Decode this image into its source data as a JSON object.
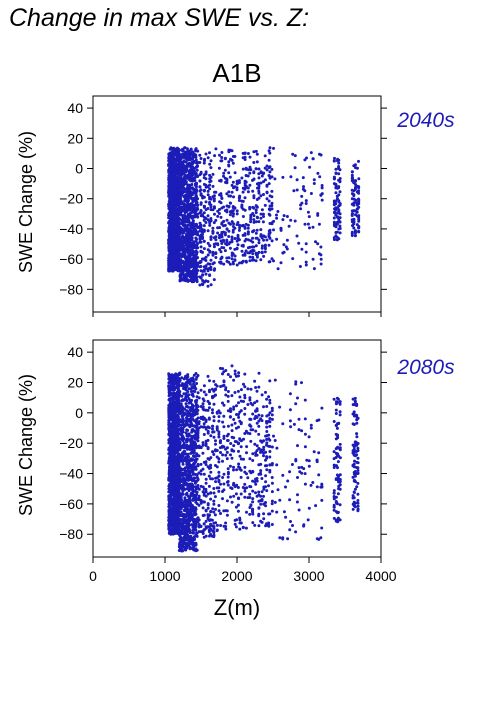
{
  "figure_title": "Change in max SWE vs. Z:",
  "colors": {
    "points": "#1c1cb8",
    "axis": "#000000",
    "panel_label": "#1c1cb8"
  },
  "chart_data": [
    {
      "type": "scatter",
      "title": "A1B",
      "panel_label": "2040s",
      "xlabel": "",
      "ylabel": "SWE Change (%)",
      "xlim": [
        0,
        4000
      ],
      "ylim": [
        -95,
        48
      ],
      "yticks": [
        40,
        20,
        0,
        -20,
        -40,
        -60,
        -80
      ],
      "ytick_labels": [
        "40",
        "20",
        "0",
        "−20",
        "−40",
        "−60",
        "−80"
      ],
      "grid": false,
      "clusters": [
        {
          "x": [
            1050,
            1200
          ],
          "range": [
            -68,
            14
          ],
          "density": "very-high"
        },
        {
          "x": [
            1200,
            1450
          ],
          "range": [
            -75,
            14
          ],
          "density": "high"
        },
        {
          "x": [
            1450,
            1700
          ],
          "range": [
            -78,
            14
          ],
          "density": "medium"
        },
        {
          "x": [
            1700,
            2100
          ],
          "range": [
            -64,
            14
          ],
          "density": "medium"
        },
        {
          "x": [
            2100,
            2500
          ],
          "range": [
            -62,
            14
          ],
          "density": "medium"
        },
        {
          "x": [
            2500,
            3200
          ],
          "range": [
            -67,
            16
          ],
          "density": "low"
        },
        {
          "x": [
            3350,
            3450
          ],
          "range": [
            -48,
            8
          ],
          "density": "low"
        },
        {
          "x": [
            3600,
            3700
          ],
          "range": [
            -45,
            7
          ],
          "density": "low"
        }
      ]
    },
    {
      "type": "scatter",
      "title": "",
      "panel_label": "2080s",
      "xlabel": "Z(m)",
      "ylabel": "SWE Change (%)",
      "xlim": [
        0,
        4000
      ],
      "ylim": [
        -95,
        48
      ],
      "xticks": [
        0,
        1000,
        2000,
        3000,
        4000
      ],
      "xtick_labels": [
        "0",
        "1000",
        "2000",
        "3000",
        "4000"
      ],
      "yticks": [
        40,
        20,
        0,
        -20,
        -40,
        -60,
        -80
      ],
      "ytick_labels": [
        "40",
        "20",
        "0",
        "−20",
        "−40",
        "−60",
        "−80"
      ],
      "grid": false,
      "clusters": [
        {
          "x": [
            1050,
            1200
          ],
          "range": [
            -80,
            26
          ],
          "density": "very-high"
        },
        {
          "x": [
            1200,
            1450
          ],
          "range": [
            -91,
            27
          ],
          "density": "high"
        },
        {
          "x": [
            1450,
            1700
          ],
          "range": [
            -83,
            27
          ],
          "density": "medium"
        },
        {
          "x": [
            1700,
            2100
          ],
          "range": [
            -78,
            32
          ],
          "density": "medium"
        },
        {
          "x": [
            2100,
            2500
          ],
          "range": [
            -76,
            27
          ],
          "density": "medium"
        },
        {
          "x": [
            2500,
            3200
          ],
          "range": [
            -85,
            23
          ],
          "density": "low"
        },
        {
          "x": [
            3350,
            3450
          ],
          "range": [
            -72,
            11
          ],
          "density": "low"
        },
        {
          "x": [
            3600,
            3700
          ],
          "range": [
            -65,
            12
          ],
          "density": "low"
        }
      ]
    }
  ]
}
